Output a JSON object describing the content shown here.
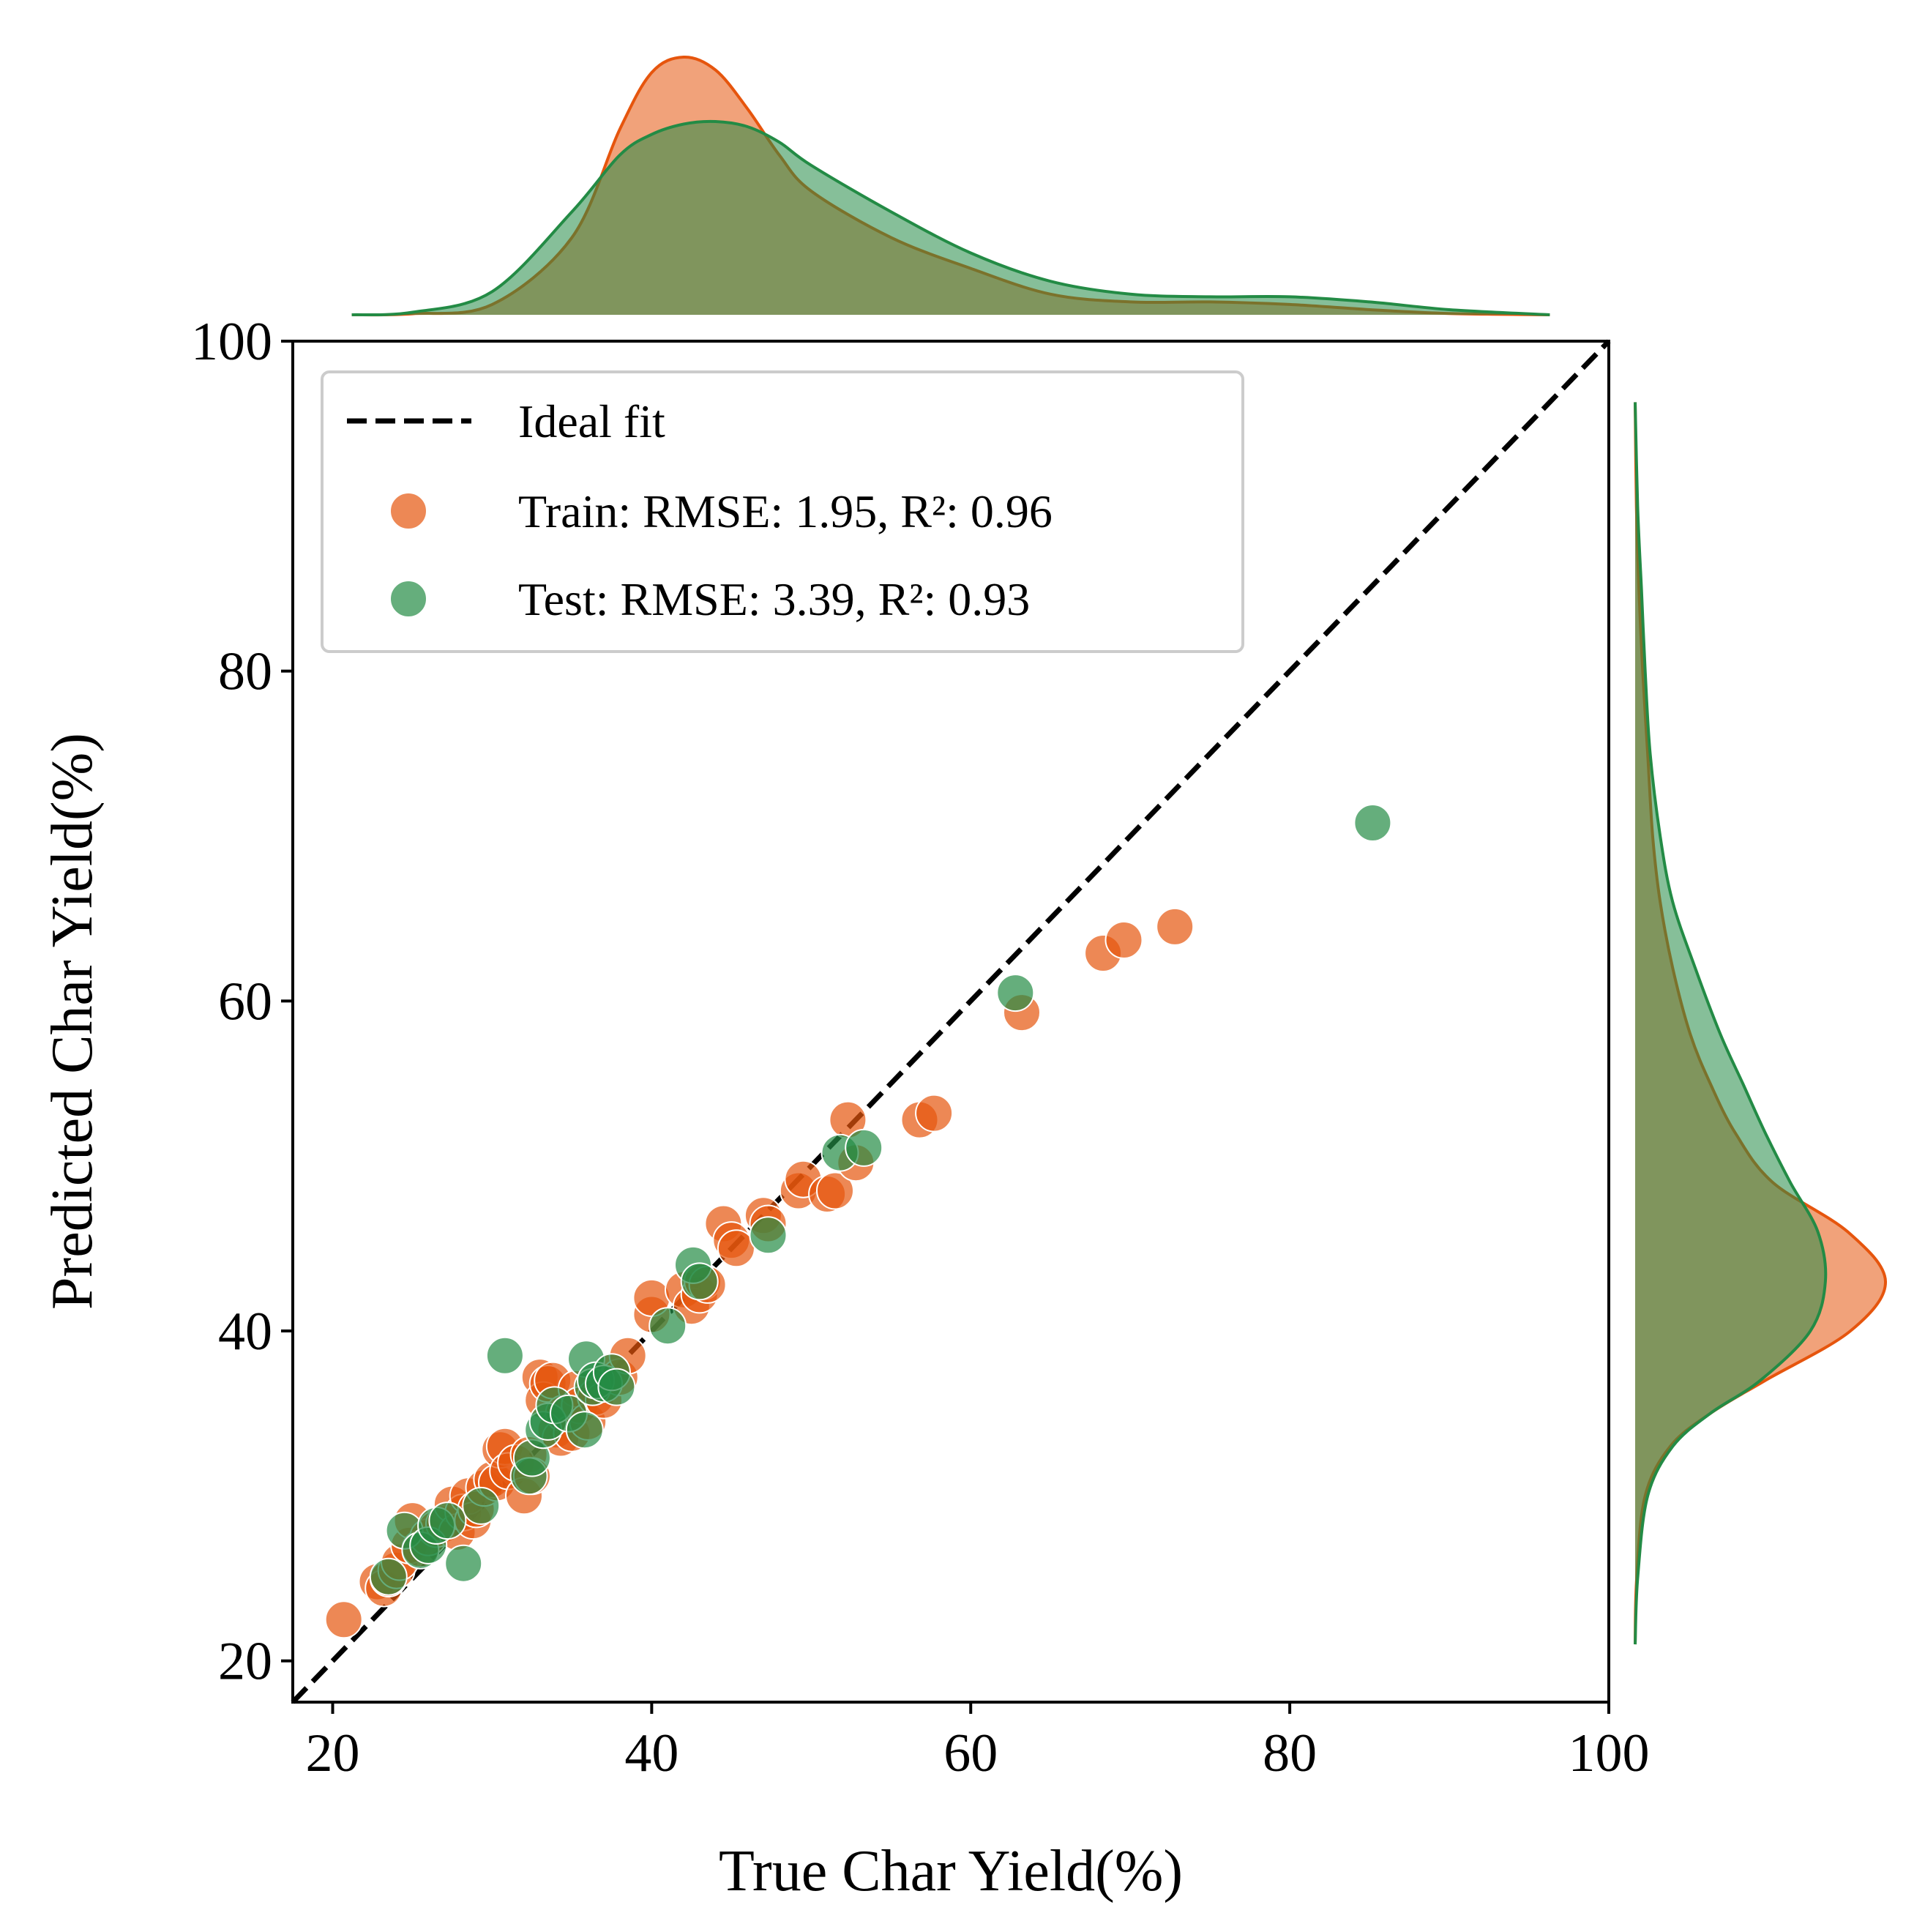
{
  "chart_data": {
    "type": "scatter",
    "xlabel": "True Char Yield(%)",
    "ylabel": "Predicted Char Yield(%)",
    "xlim": [
      17.5,
      100
    ],
    "ylim": [
      17.5,
      100
    ],
    "x_ticks": [
      "20",
      "40",
      "60",
      "80",
      "100"
    ],
    "y_ticks": [
      "20",
      "40",
      "60",
      "80",
      "100"
    ],
    "x_tick_values": [
      20,
      40,
      60,
      80,
      100
    ],
    "y_tick_values": [
      20,
      40,
      60,
      80,
      100
    ],
    "grid": false,
    "legend": {
      "placement": "upper-left",
      "entries": [
        "Ideal fit",
        "Train: RMSE: 1.95, R²: 0.96",
        "Test: RMSE: 3.39, R²: 0.93"
      ]
    },
    "colors": {
      "train": "#e6550d",
      "test": "#238b45",
      "ideal": "#000000"
    },
    "ideal_line": {
      "from": [
        17.5,
        17.5
      ],
      "to": [
        100,
        100
      ],
      "style": "dashed"
    },
    "series": [
      {
        "name": "Train: RMSE: 1.95, R²: 0.96",
        "points": [
          [
            20.7,
            22.5
          ],
          [
            22.8,
            24.8
          ],
          [
            23.2,
            24.4
          ],
          [
            23.5,
            25.0
          ],
          [
            24.0,
            25.5
          ],
          [
            24.2,
            26.0
          ],
          [
            24.8,
            27.0
          ],
          [
            25.0,
            28.5
          ],
          [
            25.5,
            26.8
          ],
          [
            26.0,
            27.5
          ],
          [
            26.5,
            28.0
          ],
          [
            27.0,
            28.3
          ],
          [
            27.5,
            29.5
          ],
          [
            27.8,
            27.8
          ],
          [
            28.2,
            29.0
          ],
          [
            28.5,
            30.0
          ],
          [
            28.8,
            28.5
          ],
          [
            29.0,
            29.2
          ],
          [
            29.5,
            30.5
          ],
          [
            30.0,
            31.0
          ],
          [
            30.3,
            30.8
          ],
          [
            30.5,
            32.8
          ],
          [
            30.8,
            33.0
          ],
          [
            31.0,
            31.5
          ],
          [
            31.5,
            32.0
          ],
          [
            32.0,
            30.0
          ],
          [
            32.3,
            32.5
          ],
          [
            32.5,
            31.2
          ],
          [
            33.0,
            37.2
          ],
          [
            33.2,
            35.8
          ],
          [
            33.5,
            36.8
          ],
          [
            33.8,
            37.0
          ],
          [
            34.0,
            34.0
          ],
          [
            34.3,
            33.5
          ],
          [
            34.5,
            35.0
          ],
          [
            35.0,
            33.8
          ],
          [
            35.3,
            36.5
          ],
          [
            35.5,
            35.5
          ],
          [
            36.0,
            34.5
          ],
          [
            36.5,
            36.0
          ],
          [
            37.0,
            35.8
          ],
          [
            37.5,
            37.5
          ],
          [
            38.0,
            37.2
          ],
          [
            38.5,
            38.5
          ],
          [
            40.0,
            41.0
          ],
          [
            40.0,
            42.0
          ],
          [
            42.0,
            42.5
          ],
          [
            42.5,
            41.5
          ],
          [
            43.0,
            42.2
          ],
          [
            43.2,
            43.0
          ],
          [
            43.5,
            42.8
          ],
          [
            44.5,
            46.5
          ],
          [
            45.0,
            45.5
          ],
          [
            45.3,
            45.0
          ],
          [
            47.0,
            47.0
          ],
          [
            47.3,
            46.5
          ],
          [
            49.2,
            48.5
          ],
          [
            49.5,
            49.2
          ],
          [
            51.0,
            48.3
          ],
          [
            51.5,
            48.5
          ],
          [
            52.3,
            52.8
          ],
          [
            52.8,
            50.2
          ],
          [
            56.8,
            52.8
          ],
          [
            57.7,
            53.2
          ],
          [
            63.2,
            59.3
          ],
          [
            68.3,
            62.9
          ],
          [
            69.6,
            63.7
          ],
          [
            72.8,
            64.5
          ]
        ]
      },
      {
        "name": "Test: RMSE: 3.39, R²: 0.93",
        "points": [
          [
            23.5,
            25.1
          ],
          [
            24.5,
            27.9
          ],
          [
            25.5,
            26.7
          ],
          [
            26.0,
            27.0
          ],
          [
            26.5,
            28.2
          ],
          [
            27.2,
            28.5
          ],
          [
            28.2,
            25.9
          ],
          [
            29.3,
            29.4
          ],
          [
            30.8,
            38.5
          ],
          [
            32.3,
            31.2
          ],
          [
            32.5,
            32.3
          ],
          [
            33.2,
            34.0
          ],
          [
            33.5,
            34.5
          ],
          [
            33.9,
            35.5
          ],
          [
            34.8,
            35.0
          ],
          [
            35.8,
            34.0
          ],
          [
            35.9,
            38.3
          ],
          [
            36.3,
            36.6
          ],
          [
            36.5,
            37.0
          ],
          [
            37.0,
            36.8
          ],
          [
            37.5,
            37.5
          ],
          [
            37.8,
            36.6
          ],
          [
            41.0,
            40.3
          ],
          [
            42.6,
            44.0
          ],
          [
            43.0,
            43.0
          ],
          [
            47.3,
            45.8
          ],
          [
            51.8,
            50.8
          ],
          [
            53.3,
            51.1
          ],
          [
            62.8,
            60.5
          ],
          [
            85.2,
            70.8
          ]
        ]
      }
    ],
    "marginal_kde_x": {
      "x": [
        21.2,
        25,
        30,
        35,
        38,
        40,
        42,
        44,
        46,
        48,
        50,
        55,
        60,
        65,
        70,
        75,
        80,
        85,
        90,
        96.3
      ],
      "train": [
        0.0,
        0.004,
        0.04,
        0.3,
        0.72,
        0.94,
        1.0,
        0.95,
        0.8,
        0.62,
        0.48,
        0.3,
        0.18,
        0.08,
        0.05,
        0.05,
        0.04,
        0.02,
        0.005,
        0.0
      ],
      "test": [
        0.0,
        0.01,
        0.09,
        0.4,
        0.62,
        0.7,
        0.74,
        0.75,
        0.73,
        0.67,
        0.58,
        0.4,
        0.24,
        0.13,
        0.08,
        0.07,
        0.07,
        0.05,
        0.02,
        0.0
      ]
    },
    "marginal_kde_y": {
      "y": [
        21,
        25,
        30,
        33,
        35,
        37,
        40,
        43,
        46,
        49,
        52,
        55,
        58,
        62,
        66,
        70,
        75,
        80,
        85,
        90,
        96.3
      ],
      "train": [
        0.0,
        0.006,
        0.04,
        0.14,
        0.3,
        0.52,
        0.86,
        1.0,
        0.85,
        0.55,
        0.4,
        0.3,
        0.22,
        0.15,
        0.1,
        0.07,
        0.05,
        0.03,
        0.015,
        0.005,
        0.0
      ],
      "test": [
        0.0,
        0.01,
        0.05,
        0.15,
        0.3,
        0.5,
        0.7,
        0.76,
        0.73,
        0.62,
        0.52,
        0.43,
        0.34,
        0.24,
        0.15,
        0.1,
        0.06,
        0.04,
        0.025,
        0.01,
        0.0
      ]
    }
  }
}
